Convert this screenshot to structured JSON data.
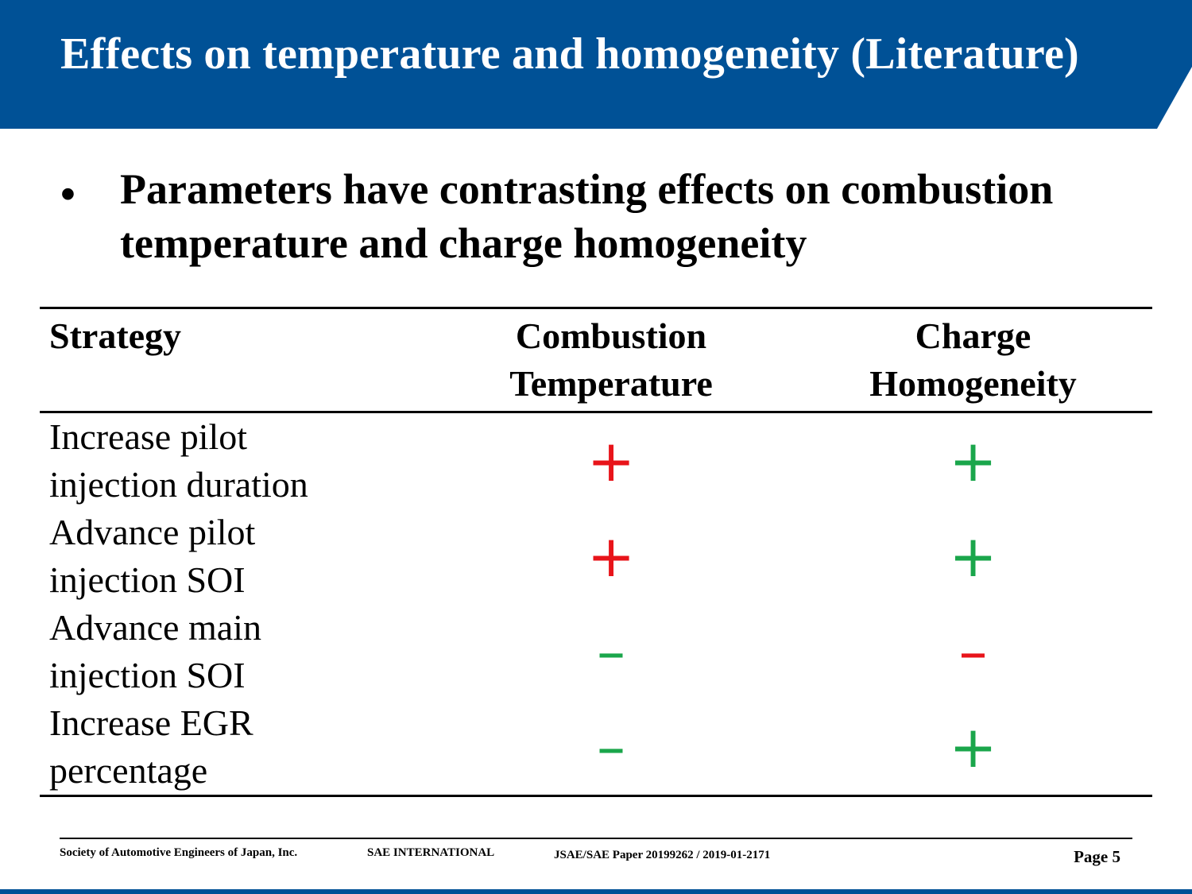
{
  "title": "Effects on temperature and homogeneity (Literature)",
  "bullet": {
    "symbol": "•",
    "text": "Parameters have contrasting effects on combustion temperature and charge homogeneity"
  },
  "table": {
    "headers": {
      "strategy": "Strategy",
      "temperature": [
        "Combustion",
        "Temperature"
      ],
      "homogeneity": [
        "Charge",
        "Homogeneity"
      ]
    },
    "rows": [
      {
        "strategy": [
          "Increase pilot",
          "injection duration"
        ],
        "temperature": {
          "symbol": "+",
          "color": "#e8141a"
        },
        "homogeneity": {
          "symbol": "+",
          "color": "#1aa64b"
        }
      },
      {
        "strategy": [
          "Advance pilot",
          "injection SOI"
        ],
        "temperature": {
          "symbol": "+",
          "color": "#e8141a"
        },
        "homogeneity": {
          "symbol": "+",
          "color": "#1aa64b"
        }
      },
      {
        "strategy": [
          "Advance main",
          "injection SOI"
        ],
        "temperature": {
          "symbol": "–",
          "color": "#1aa64b"
        },
        "homogeneity": {
          "symbol": "–",
          "color": "#e8141a"
        }
      },
      {
        "strategy": [
          "Increase EGR",
          "percentage"
        ],
        "temperature": {
          "symbol": "–",
          "color": "#1aa64b"
        },
        "homogeneity": {
          "symbol": "+",
          "color": "#1aa64b"
        }
      }
    ]
  },
  "footer": {
    "org1": "Society of Automotive Engineers of Japan, Inc.",
    "org2": "SAE INTERNATIONAL",
    "paper": "JSAE/SAE  Paper 20199262 / 2019-01-2171",
    "page": "Page 5"
  },
  "colors": {
    "brand_blue": "#005196",
    "increase_red": "#e8141a",
    "favorable_green": "#1aa64b"
  }
}
